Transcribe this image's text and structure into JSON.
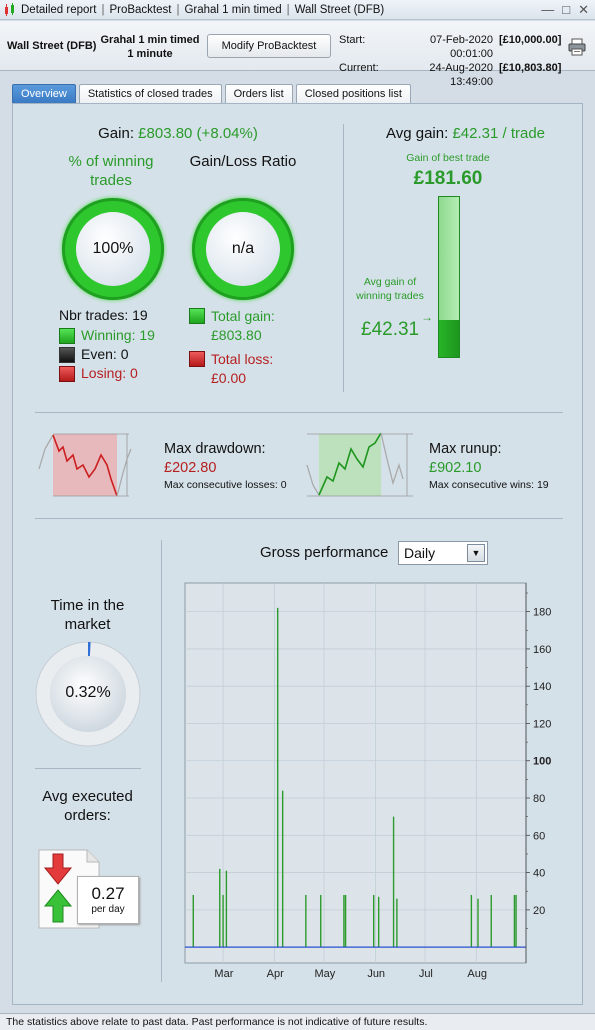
{
  "window": {
    "breadcrumbs": [
      "Detailed report",
      "ProBacktest",
      "Grahal 1 min timed",
      "Wall Street (DFB)"
    ],
    "controls": [
      "—",
      "□",
      "✕"
    ]
  },
  "header": {
    "instrument": "Wall Street (DFB)",
    "strategy_line1": "Grahal 1 min timed",
    "strategy_line2": "1 minute",
    "modify_button": "Modify ProBacktest",
    "start_label": "Start:",
    "start_date": "07-Feb-2020 00:01:00",
    "start_capital": "[£10,000.00]",
    "current_label": "Current:",
    "current_date": "24-Aug-2020 13:49:00",
    "current_capital": "[£10,803.80]"
  },
  "tabs": [
    {
      "label": "Overview",
      "active": true
    },
    {
      "label": "Statistics of closed trades",
      "active": false
    },
    {
      "label": "Orders list",
      "active": false
    },
    {
      "label": "Closed positions list",
      "active": false
    }
  ],
  "overview": {
    "gain_label": "Gain:",
    "gain_value": "£803.80 (+8.04%)",
    "winning_title": "% of winning trades",
    "winning_pct": "100%",
    "ratio_title": "Gain/Loss Ratio",
    "ratio_value": "n/a",
    "nbr_trades": "Nbr trades: 19",
    "winning": "Winning: 19",
    "even": "Even: 0",
    "losing": "Losing: 0",
    "total_gain_label": "Total gain:",
    "total_gain_value": "£803.80",
    "total_loss_label": "Total loss:",
    "total_loss_value": "£0.00",
    "avg_gain_label": "Avg gain:",
    "avg_gain_value": "£42.31 / trade",
    "best_trade_label": "Gain of best trade",
    "best_trade_value": "£181.60",
    "avg_winning_label": "Avg gain of winning trades",
    "avg_winning_value": "£42.31",
    "avg_to_best_fraction": 0.233,
    "max_drawdown_label": "Max drawdown:",
    "max_drawdown_value": "£202.80",
    "max_consec_losses": "Max consecutive losses: 0",
    "max_runup_label": "Max runup:",
    "max_runup_value": "£902.10",
    "max_consec_wins": "Max consecutive wins: 19",
    "time_in_market_title": "Time in the market",
    "time_in_market_value": "0.32%",
    "time_in_market_fraction": 0.0032,
    "avg_orders_title": "Avg executed orders:",
    "avg_orders_value": "0.27",
    "avg_orders_unit": "per day",
    "gross_title": "Gross performance",
    "gross_period": "Daily"
  },
  "chart_data": {
    "type": "bar",
    "title": "Gross performance",
    "x_ticks": [
      "Mar",
      "Apr",
      "May",
      "Jun",
      "Jul",
      "Aug"
    ],
    "y_ticks": [
      "20",
      "40",
      "60",
      "80",
      "100",
      "120",
      "140",
      "160",
      "180"
    ],
    "ylim": [
      -1,
      190
    ],
    "grid": true,
    "bar_color": "#2c9a2c",
    "baseline_color": "#2a4fd0",
    "series": [
      {
        "dates": [
          "2020-02-12",
          "2020-02-28",
          "2020-03-01",
          "2020-03-03",
          "2020-04-03",
          "2020-04-06",
          "2020-04-20",
          "2020-04-29",
          "2020-05-13",
          "2020-05-14",
          "2020-05-31",
          "2020-06-03",
          "2020-06-12",
          "2020-06-14",
          "2020-07-29",
          "2020-08-02",
          "2020-08-10",
          "2020-08-24",
          "2020-08-25"
        ],
        "values": [
          28,
          42,
          28,
          41,
          182,
          84,
          28,
          28,
          28,
          28,
          28,
          27,
          70,
          26,
          28,
          26,
          28,
          28,
          28
        ]
      }
    ]
  },
  "footer": {
    "text": "The statistics above relate to past data. Past performance is not indicative of future results."
  }
}
